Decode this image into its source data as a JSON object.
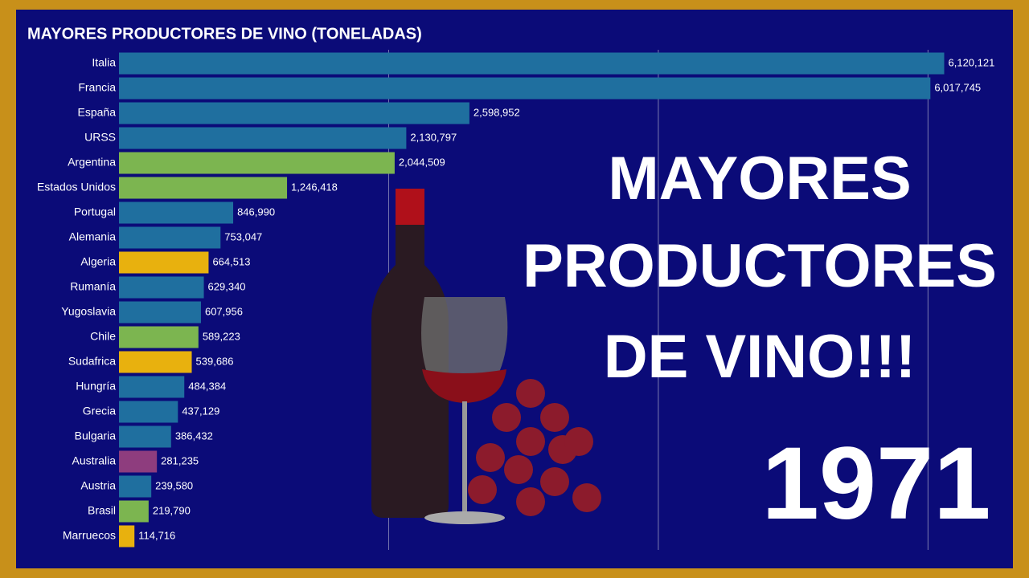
{
  "chart_data": {
    "type": "barh",
    "title": "MAYORES PRODUCTORES DE VINO (TONELADAS)",
    "categories": [
      "Italia",
      "Francia",
      "España",
      "URSS",
      "Argentina",
      "Estados Unidos",
      "Portugal",
      "Alemania",
      "Algeria",
      "Rumanía",
      "Yugoslavia",
      "Chile",
      "Sudafrica",
      "Hungría",
      "Grecia",
      "Bulgaria",
      "Australia",
      "Austria",
      "Brasil",
      "Marruecos"
    ],
    "values": [
      6120121,
      6017745,
      2598952,
      2130797,
      2044509,
      1246418,
      846990,
      753047,
      664513,
      629340,
      607956,
      589223,
      539686,
      484384,
      437129,
      386432,
      281235,
      239580,
      219790,
      114716
    ],
    "value_labels": [
      "6,120,121",
      "6,017,745",
      "2,598,952",
      "2,130,797",
      "2,044,509",
      "1,246,418",
      "846,990",
      "753,047",
      "664,513",
      "629,340",
      "607,956",
      "589,223",
      "539,686",
      "484,384",
      "437,129",
      "386,432",
      "281,235",
      "239,580",
      "219,790",
      "114,716"
    ],
    "colors": [
      "#1f6f9f",
      "#1f6f9f",
      "#1f6f9f",
      "#1f6f9f",
      "#7cb550",
      "#7cb550",
      "#1f6f9f",
      "#1f6f9f",
      "#e8b10e",
      "#1f6f9f",
      "#1f6f9f",
      "#7cb550",
      "#e8b10e",
      "#1f6f9f",
      "#1f6f9f",
      "#1f6f9f",
      "#8e3d7e",
      "#1f6f9f",
      "#7cb550",
      "#e8b10e"
    ],
    "xlim": [
      0,
      6600000
    ],
    "xticks": [
      2000000,
      4000000,
      6000000
    ],
    "grid": true,
    "overlay_title": [
      "MAYORES",
      "PRODUCTORES",
      "DE VINO!!!"
    ],
    "year": "1971"
  }
}
